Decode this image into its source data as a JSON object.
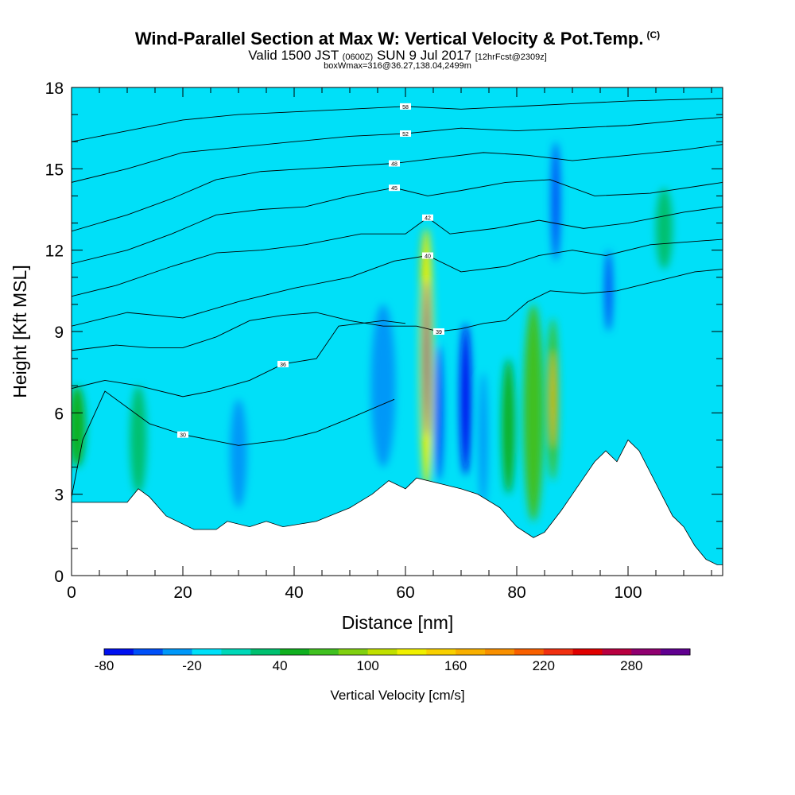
{
  "header": {
    "title": "Wind-Parallel Section at Max W: Vertical Velocity & Pot.Temp.",
    "copyright": "(C)",
    "valid_main": "Valid 1500 JST",
    "valid_utc": "(0600Z)",
    "valid_date": "SUN 9 Jul 2017",
    "forecast": "[12hrFcst@2309z]",
    "boxinfo": "boxWmax=316@36.27,138.04,2499m"
  },
  "chart_data": {
    "type": "heatmap",
    "xlabel": "Distance [nm]",
    "ylabel": "Height [Kft MSL]",
    "xlim": [
      0,
      117
    ],
    "ylim": [
      0,
      18
    ],
    "x_ticks": [
      "0",
      "20",
      "40",
      "60",
      "80",
      "100"
    ],
    "x_tick_values": [
      0,
      20,
      40,
      60,
      80,
      100
    ],
    "y_ticks": [
      "0",
      "3",
      "6",
      "9",
      "12",
      "15",
      "18"
    ],
    "y_tick_values": [
      0,
      3,
      6,
      9,
      12,
      15,
      18
    ],
    "colorbar": {
      "label": "Vertical Velocity [cm/s]",
      "tick_labels": [
        "-80",
        "-20",
        "40",
        "100",
        "160",
        "220",
        "280"
      ],
      "tick_values": [
        -80,
        -20,
        40,
        100,
        160,
        220,
        280
      ],
      "levels": [
        -80,
        -60,
        -40,
        -20,
        0,
        20,
        40,
        60,
        80,
        100,
        120,
        140,
        160,
        180,
        200,
        220,
        240,
        260,
        280,
        300,
        320
      ],
      "colors": [
        "#0010f0",
        "#0050f8",
        "#0098f8",
        "#00e0f8",
        "#00d8b8",
        "#00c070",
        "#10b020",
        "#40c020",
        "#80d010",
        "#c0e000",
        "#f0f000",
        "#f8d000",
        "#f8b000",
        "#f89000",
        "#f86000",
        "#f03010",
        "#e00000",
        "#b80040",
        "#900070",
        "#600090"
      ]
    },
    "terrain_nm_kft": [
      [
        0,
        2.7
      ],
      [
        10,
        2.7
      ],
      [
        12,
        3.2
      ],
      [
        14,
        2.9
      ],
      [
        17,
        2.2
      ],
      [
        22,
        1.7
      ],
      [
        26,
        1.7
      ],
      [
        28,
        2.0
      ],
      [
        32,
        1.8
      ],
      [
        35,
        2.0
      ],
      [
        38,
        1.8
      ],
      [
        44,
        2.0
      ],
      [
        50,
        2.5
      ],
      [
        54,
        3.0
      ],
      [
        57,
        3.5
      ],
      [
        60,
        3.2
      ],
      [
        62,
        3.6
      ],
      [
        66,
        3.4
      ],
      [
        70,
        3.2
      ],
      [
        73,
        3.0
      ],
      [
        77,
        2.5
      ],
      [
        80,
        1.8
      ],
      [
        83,
        1.4
      ],
      [
        85,
        1.6
      ],
      [
        88,
        2.4
      ],
      [
        90,
        3.0
      ],
      [
        92,
        3.6
      ],
      [
        94,
        4.2
      ],
      [
        96,
        4.6
      ],
      [
        98,
        4.2
      ],
      [
        100,
        5.0
      ],
      [
        102,
        4.6
      ],
      [
        104,
        3.8
      ],
      [
        106,
        3.0
      ],
      [
        108,
        2.2
      ],
      [
        110,
        1.8
      ],
      [
        112,
        1.1
      ],
      [
        114,
        0.6
      ],
      [
        116,
        0.4
      ],
      [
        117,
        0.4
      ]
    ],
    "velocity_cells_cm_s": [
      {
        "x": 63.8,
        "y": 8.0,
        "rx": 1.2,
        "ry": 4.8,
        "w": 300
      },
      {
        "x": 63.6,
        "y": 11.2,
        "rx": 0.9,
        "ry": 1.6,
        "w": 140
      },
      {
        "x": 86.5,
        "y": 6.5,
        "rx": 1.0,
        "ry": 3.0,
        "w": 170
      },
      {
        "x": 83.0,
        "y": 6.0,
        "rx": 1.8,
        "ry": 4.0,
        "w": 60
      },
      {
        "x": 78.5,
        "y": 5.5,
        "rx": 1.2,
        "ry": 2.5,
        "w": 40
      },
      {
        "x": 66.0,
        "y": 6.0,
        "rx": 0.8,
        "ry": 2.5,
        "w": -60
      },
      {
        "x": 70.8,
        "y": 6.5,
        "rx": 1.0,
        "ry": 2.8,
        "w": -70
      },
      {
        "x": 74.0,
        "y": 5.0,
        "rx": 0.8,
        "ry": 2.5,
        "w": -40
      },
      {
        "x": 56.0,
        "y": 7.0,
        "rx": 2.2,
        "ry": 3.0,
        "w": -30
      },
      {
        "x": 30.0,
        "y": 4.5,
        "rx": 1.5,
        "ry": 2.0,
        "w": -35
      },
      {
        "x": 87.0,
        "y": 13.8,
        "rx": 0.8,
        "ry": 2.2,
        "w": -60
      },
      {
        "x": 96.5,
        "y": 10.5,
        "rx": 0.7,
        "ry": 1.5,
        "w": -50
      },
      {
        "x": 12.0,
        "y": 5.0,
        "rx": 1.5,
        "ry": 2.0,
        "w": 35
      },
      {
        "x": 1.0,
        "y": 5.5,
        "rx": 1.5,
        "ry": 1.5,
        "w": 40
      },
      {
        "x": 106.5,
        "y": 12.8,
        "rx": 1.5,
        "ry": 1.5,
        "w": 35
      }
    ],
    "theta_contours": [
      {
        "label": "30",
        "pts": [
          [
            0,
            2.9
          ],
          [
            2,
            5.0
          ],
          [
            6,
            6.8
          ],
          [
            10,
            6.2
          ],
          [
            14,
            5.6
          ],
          [
            20,
            5.2
          ],
          [
            30,
            4.8
          ],
          [
            38,
            5.0
          ],
          [
            44,
            5.3
          ],
          [
            50,
            5.8
          ],
          [
            58,
            6.5
          ]
        ]
      },
      {
        "label": "36",
        "pts": [
          [
            0,
            6.9
          ],
          [
            6,
            7.2
          ],
          [
            12,
            7.0
          ],
          [
            20,
            6.6
          ],
          [
            25,
            6.8
          ],
          [
            32,
            7.2
          ],
          [
            38,
            7.8
          ],
          [
            44,
            8.0
          ],
          [
            48,
            9.2
          ],
          [
            52,
            9.3
          ],
          [
            56,
            9.4
          ],
          [
            60,
            9.3
          ]
        ]
      },
      {
        "label": "39",
        "pts": [
          [
            0,
            8.3
          ],
          [
            8,
            8.5
          ],
          [
            14,
            8.4
          ],
          [
            20,
            8.4
          ],
          [
            26,
            8.8
          ],
          [
            32,
            9.4
          ],
          [
            38,
            9.6
          ],
          [
            44,
            9.7
          ],
          [
            50,
            9.4
          ],
          [
            56,
            9.2
          ],
          [
            62,
            9.2
          ],
          [
            66,
            9.0
          ],
          [
            70,
            9.1
          ],
          [
            74,
            9.3
          ],
          [
            78,
            9.4
          ],
          [
            82,
            10.1
          ],
          [
            86,
            10.5
          ],
          [
            92,
            10.4
          ],
          [
            98,
            10.5
          ],
          [
            106,
            10.9
          ],
          [
            112,
            11.2
          ],
          [
            117,
            11.3
          ]
        ]
      },
      {
        "label": "40",
        "pts": [
          [
            0,
            9.2
          ],
          [
            10,
            9.7
          ],
          [
            20,
            9.5
          ],
          [
            30,
            10.1
          ],
          [
            40,
            10.6
          ],
          [
            50,
            11.0
          ],
          [
            58,
            11.6
          ],
          [
            64,
            11.8
          ],
          [
            70,
            11.2
          ],
          [
            78,
            11.4
          ],
          [
            84,
            11.8
          ],
          [
            90,
            12.0
          ],
          [
            96,
            11.8
          ],
          [
            104,
            12.2
          ],
          [
            117,
            12.4
          ]
        ]
      },
      {
        "label": "42",
        "pts": [
          [
            0,
            10.3
          ],
          [
            8,
            10.7
          ],
          [
            18,
            11.4
          ],
          [
            26,
            11.9
          ],
          [
            34,
            12.0
          ],
          [
            42,
            12.2
          ],
          [
            52,
            12.6
          ],
          [
            60,
            12.6
          ],
          [
            64,
            13.2
          ],
          [
            68,
            12.6
          ],
          [
            76,
            12.8
          ],
          [
            84,
            13.1
          ],
          [
            92,
            12.8
          ],
          [
            100,
            13.0
          ],
          [
            110,
            13.4
          ],
          [
            117,
            13.6
          ]
        ]
      },
      {
        "label": "45",
        "pts": [
          [
            0,
            11.5
          ],
          [
            10,
            12.0
          ],
          [
            18,
            12.6
          ],
          [
            26,
            13.3
          ],
          [
            34,
            13.5
          ],
          [
            42,
            13.6
          ],
          [
            50,
            14.0
          ],
          [
            58,
            14.3
          ],
          [
            64,
            14.0
          ],
          [
            70,
            14.2
          ],
          [
            78,
            14.5
          ],
          [
            86,
            14.6
          ],
          [
            94,
            14.0
          ],
          [
            104,
            14.1
          ],
          [
            117,
            14.5
          ]
        ]
      },
      {
        "label": "48",
        "pts": [
          [
            0,
            12.7
          ],
          [
            10,
            13.3
          ],
          [
            18,
            13.9
          ],
          [
            26,
            14.6
          ],
          [
            34,
            14.9
          ],
          [
            42,
            15.0
          ],
          [
            50,
            15.1
          ],
          [
            58,
            15.2
          ],
          [
            66,
            15.4
          ],
          [
            74,
            15.6
          ],
          [
            82,
            15.5
          ],
          [
            90,
            15.3
          ],
          [
            100,
            15.5
          ],
          [
            110,
            15.7
          ],
          [
            117,
            15.9
          ]
        ]
      },
      {
        "label": "52",
        "pts": [
          [
            0,
            14.5
          ],
          [
            10,
            15.0
          ],
          [
            20,
            15.6
          ],
          [
            30,
            15.8
          ],
          [
            40,
            16.0
          ],
          [
            50,
            16.2
          ],
          [
            60,
            16.3
          ],
          [
            70,
            16.5
          ],
          [
            80,
            16.4
          ],
          [
            90,
            16.5
          ],
          [
            100,
            16.6
          ],
          [
            110,
            16.8
          ],
          [
            117,
            16.9
          ]
        ]
      },
      {
        "label": "58",
        "pts": [
          [
            0,
            16.0
          ],
          [
            10,
            16.4
          ],
          [
            20,
            16.8
          ],
          [
            30,
            17.0
          ],
          [
            40,
            17.1
          ],
          [
            50,
            17.2
          ],
          [
            60,
            17.3
          ],
          [
            70,
            17.2
          ],
          [
            80,
            17.3
          ],
          [
            90,
            17.4
          ],
          [
            100,
            17.5
          ],
          [
            117,
            17.6
          ]
        ]
      }
    ]
  }
}
